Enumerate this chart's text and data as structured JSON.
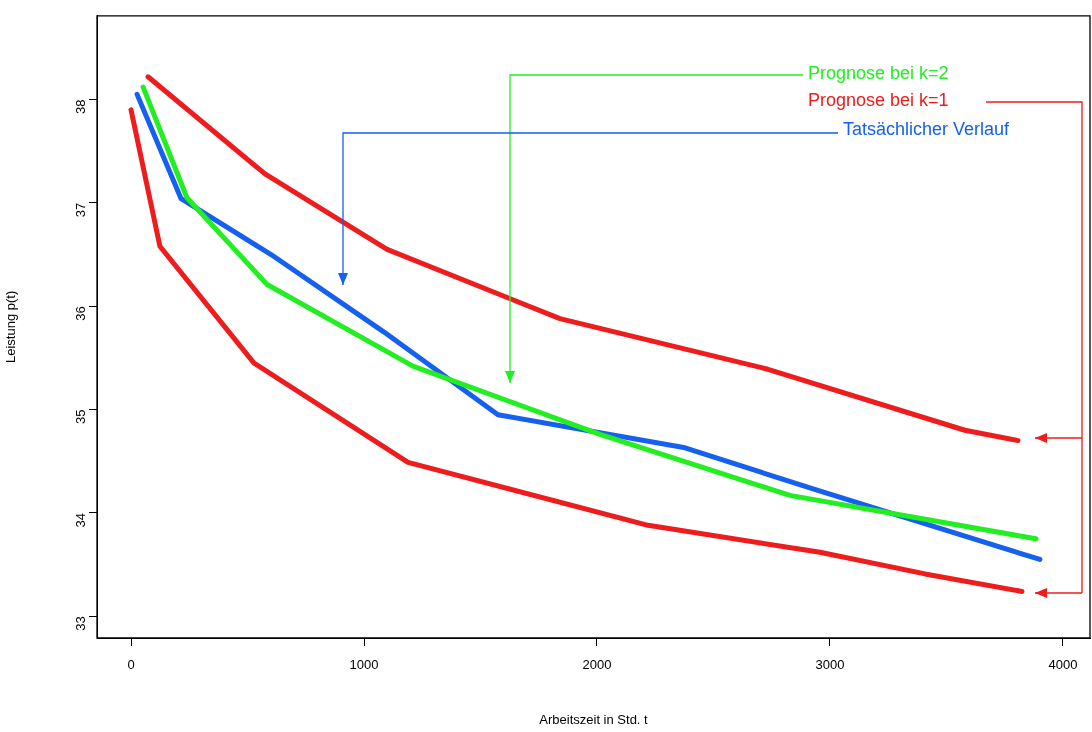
{
  "chart_data": {
    "type": "line",
    "xlabel": "Arbeitszeit in Std. t",
    "ylabel": "Leistung p(t)",
    "xlim": [
      -146,
      4116
    ],
    "ylim": [
      32.79,
      38.81
    ],
    "xticks": [
      0,
      1000,
      2000,
      3000,
      4000
    ],
    "yticks": [
      33,
      34,
      35,
      36,
      37,
      38
    ],
    "legend": false,
    "marker": "none",
    "line_style": "solid",
    "series": [
      {
        "name": "Prognose bei k=1",
        "color": "#ee1c1c",
        "x": [
          73,
          575,
          1099,
          1841,
          2734,
          3579,
          3807
        ],
        "values": [
          38.22,
          37.28,
          36.55,
          35.88,
          35.39,
          34.8,
          34.7
        ]
      },
      {
        "color": "#ee1c1c",
        "x": [
          0,
          124,
          528,
          1189,
          2219,
          2957,
          3408,
          3824
        ],
        "values": [
          37.9,
          36.58,
          35.45,
          34.49,
          33.88,
          33.62,
          33.41,
          33.24
        ]
      },
      {
        "name": "Prognose bei k=2",
        "color": "#22ee22",
        "x": [
          52,
          240,
          584,
          1210,
          2013,
          2828,
          3884
        ],
        "values": [
          38.12,
          37.05,
          36.21,
          35.42,
          34.76,
          34.17,
          33.75
        ]
      },
      {
        "name": "Tatsächlicher Verlauf",
        "color": "#1560ee",
        "x": [
          26,
          215,
          601,
          1086,
          1575,
          2378,
          2931,
          3901
        ],
        "values": [
          38.05,
          37.04,
          36.5,
          35.75,
          34.95,
          34.63,
          34.23,
          33.55
        ]
      }
    ]
  }
}
